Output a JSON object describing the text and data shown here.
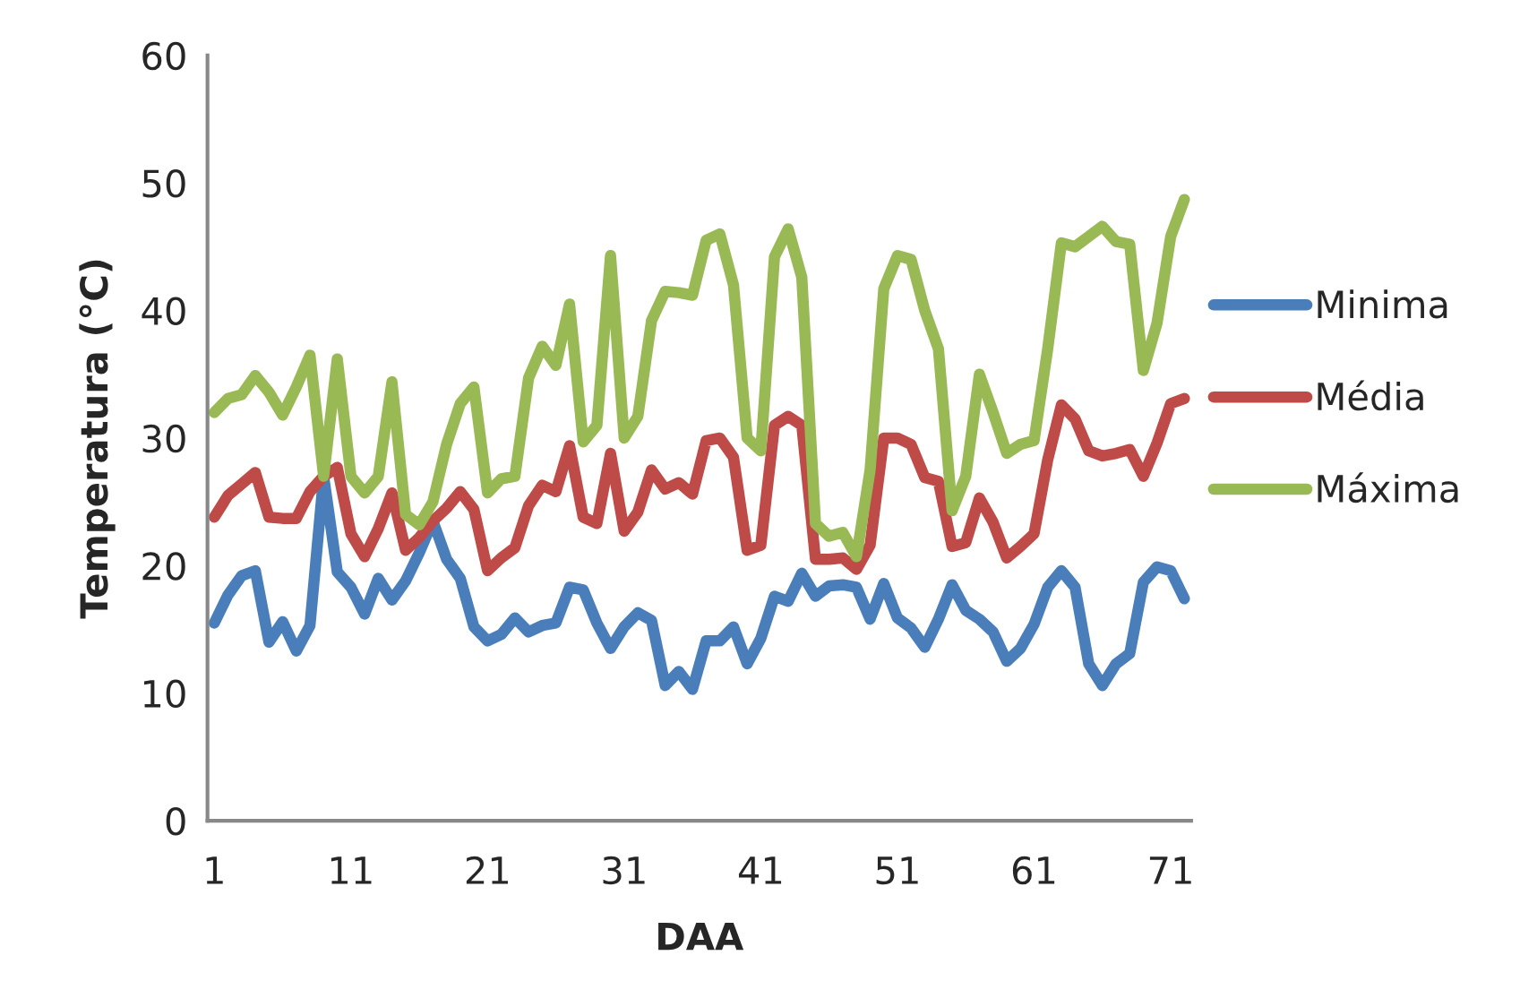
{
  "chart_data": {
    "type": "line",
    "xlabel": "DAA",
    "ylabel": "Temperatura (°C)",
    "categories": [
      "1",
      null,
      null,
      null,
      null,
      null,
      null,
      null,
      null,
      null,
      "11",
      null,
      null,
      null,
      null,
      null,
      null,
      null,
      null,
      null,
      "21",
      null,
      null,
      null,
      null,
      null,
      null,
      null,
      null,
      null,
      "31",
      null,
      null,
      null,
      null,
      null,
      null,
      null,
      null,
      null,
      "41",
      null,
      null,
      null,
      null,
      null,
      null,
      null,
      null,
      null,
      "51",
      null,
      null,
      null,
      null,
      null,
      null,
      null,
      null,
      null,
      "61",
      null,
      null,
      null,
      null,
      null,
      null,
      null,
      null,
      null,
      "71",
      null
    ],
    "ylim": [
      0,
      60
    ],
    "yticks": [
      0,
      10,
      20,
      30,
      40,
      50,
      60
    ],
    "grid": false,
    "legend": "right",
    "marker": "none",
    "line_style": "solid",
    "series": [
      {
        "name": "Minima",
        "color": "#4a7ebb",
        "values": [
          15.5,
          17.7,
          19.2,
          19.6,
          14,
          15.6,
          13.3,
          15.3,
          27,
          19.5,
          18.3,
          16.2,
          19,
          17.3,
          18.8,
          21,
          23.5,
          20.5,
          19,
          15.2,
          14.1,
          14.6,
          15.9,
          14.8,
          15.3,
          15.5,
          18.3,
          18.1,
          15.5,
          13.5,
          15.2,
          16.3,
          15.7,
          10.6,
          11.7,
          10.3,
          14.1,
          14.1,
          15.2,
          12.3,
          14.3,
          17.6,
          17.2,
          19.4,
          17.6,
          18.4,
          18.5,
          18.3,
          15.8,
          18.6,
          15.9,
          15.1,
          13.6,
          15.8,
          18.5,
          16.5,
          15.8,
          14.8,
          12.5,
          13.5,
          15.4,
          18.3,
          19.6,
          18.3,
          12.3,
          10.6,
          12.3,
          13.1,
          18.7,
          19.9,
          19.6,
          17.4
        ]
      },
      {
        "name": "Média",
        "color": "#be4b48",
        "values": [
          23.8,
          25.5,
          26.4,
          27.3,
          23.8,
          23.7,
          23.7,
          25.8,
          27,
          27.7,
          22.5,
          20.7,
          22.9,
          25.7,
          21.2,
          22.2,
          23.5,
          24.5,
          25.8,
          24.4,
          19.6,
          20.6,
          21.4,
          24.7,
          26.3,
          25.8,
          29.4,
          23.8,
          23.3,
          28.8,
          22.7,
          24.2,
          27.5,
          26,
          26.5,
          25.6,
          29.8,
          30,
          28.5,
          21.2,
          21.6,
          31,
          31.7,
          31,
          20.5,
          20.5,
          20.6,
          19.7,
          21.6,
          30,
          30,
          29.5,
          26.9,
          26.6,
          21.5,
          21.8,
          25.3,
          23.4,
          20.6,
          21.5,
          22.5,
          28.3,
          32.6,
          31.5,
          29,
          28.6,
          28.8,
          29.1,
          27,
          29.6,
          32.7,
          33.1
        ]
      },
      {
        "name": "Máxima",
        "color": "#98b954",
        "values": [
          32,
          33.1,
          33.4,
          34.9,
          33.6,
          31.8,
          34,
          36.5,
          27,
          36.2,
          27,
          25.7,
          27,
          34.4,
          24,
          23.2,
          25,
          29.5,
          32.7,
          34,
          25.7,
          26.8,
          27,
          34.7,
          37.2,
          35.7,
          40.5,
          29.7,
          31,
          44.3,
          30,
          31.7,
          39.2,
          41.5,
          41.4,
          41.2,
          45.5,
          46,
          42,
          30,
          29,
          44.2,
          46.4,
          42.6,
          23.3,
          22.3,
          22.6,
          20.7,
          27.5,
          41.7,
          44.3,
          44,
          40,
          37,
          24.3,
          27,
          35,
          32,
          28.8,
          29.5,
          29.8,
          37,
          45.3,
          45,
          45.8,
          46.6,
          45.4,
          45.2,
          35.3,
          39,
          45.8,
          48.7
        ]
      }
    ]
  }
}
